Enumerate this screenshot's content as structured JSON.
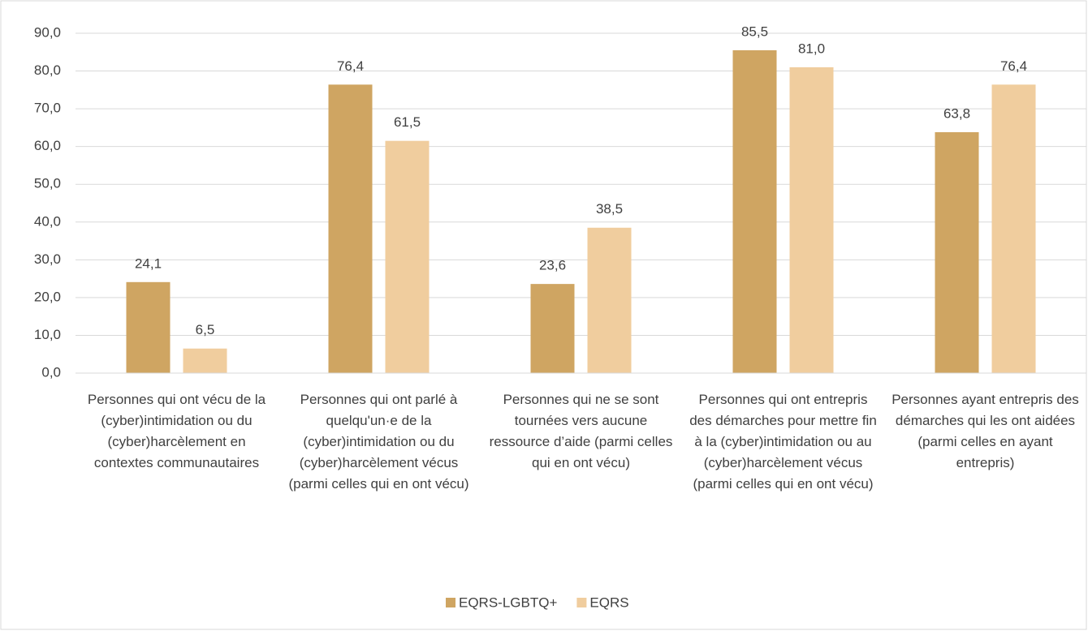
{
  "chart_data": {
    "type": "bar",
    "categories": [
      "Personnes qui ont vécu de la (cyber)intimidation ou du (cyber)harcèlement en contextes communautaires",
      "Personnes qui ont parlé à quelqu'un·e de la (cyber)intimidation ou du (cyber)harcèlement vécus (parmi celles qui en ont vécu)",
      "Personnes qui ne se sont tournées vers aucune ressource d’aide (parmi celles qui en ont vécu)",
      "Personnes qui ont entrepris des démarches pour mettre fin à la (cyber)intimidation ou au (cyber)harcèlement vécus (parmi celles qui en ont vécu)",
      "Personnes ayant entrepris des démarches qui les ont aidées (parmi celles en ayant entrepris)"
    ],
    "series": [
      {
        "name": "EQRS-LGBTQ+",
        "color": "#cfa562",
        "values": [
          24.1,
          76.4,
          23.6,
          85.5,
          63.8
        ],
        "value_labels": [
          "24,1",
          "76,4",
          "23,6",
          "85,5",
          "63,8"
        ]
      },
      {
        "name": "EQRS",
        "color": "#f0cd9e",
        "values": [
          6.5,
          61.5,
          38.5,
          81.0,
          76.4
        ],
        "value_labels": [
          "6,5",
          "61,5",
          "38,5",
          "81,0",
          "76,4"
        ]
      }
    ],
    "ylim": [
      0,
      90
    ],
    "yticks": [
      {
        "value": 0,
        "label": "0,0"
      },
      {
        "value": 10,
        "label": "10,0"
      },
      {
        "value": 20,
        "label": "20,0"
      },
      {
        "value": 30,
        "label": "30,0"
      },
      {
        "value": 40,
        "label": "40,0"
      },
      {
        "value": 50,
        "label": "50,0"
      },
      {
        "value": 60,
        "label": "60,0"
      },
      {
        "value": 70,
        "label": "70,0"
      },
      {
        "value": 80,
        "label": "80,0"
      },
      {
        "value": 90,
        "label": "90,0"
      }
    ],
    "grid": true,
    "legend": "bottom"
  }
}
